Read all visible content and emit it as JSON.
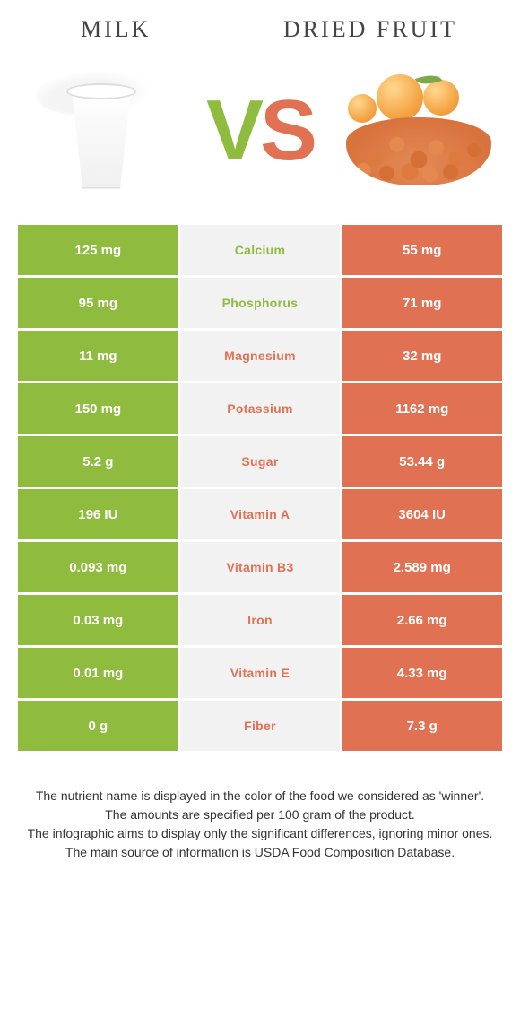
{
  "titles": {
    "left": "Milk",
    "right": "Dried fruit"
  },
  "colors": {
    "left": "#8fbb3f",
    "right": "#e17153",
    "mid_bg": "#f2f2f2"
  },
  "vs": {
    "v": "V",
    "s": "S"
  },
  "rows": [
    {
      "left": "125 mg",
      "label": "Calcium",
      "right": "55 mg",
      "winner": "left"
    },
    {
      "left": "95 mg",
      "label": "Phosphorus",
      "right": "71 mg",
      "winner": "left"
    },
    {
      "left": "11 mg",
      "label": "Magnesium",
      "right": "32 mg",
      "winner": "right"
    },
    {
      "left": "150 mg",
      "label": "Potassium",
      "right": "1162 mg",
      "winner": "right"
    },
    {
      "left": "5.2 g",
      "label": "Sugar",
      "right": "53.44 g",
      "winner": "right"
    },
    {
      "left": "196 IU",
      "label": "Vitamin A",
      "right": "3604 IU",
      "winner": "right"
    },
    {
      "left": "0.093 mg",
      "label": "Vitamin B3",
      "right": "2.589 mg",
      "winner": "right"
    },
    {
      "left": "0.03 mg",
      "label": "Iron",
      "right": "2.66 mg",
      "winner": "right"
    },
    {
      "left": "0.01 mg",
      "label": "Vitamin E",
      "right": "4.33 mg",
      "winner": "right"
    },
    {
      "left": "0 g",
      "label": "Fiber",
      "right": "7.3 g",
      "winner": "right"
    }
  ],
  "footer_lines": [
    "The nutrient name is displayed in the color of the food we considered as 'winner'.",
    "The amounts are specified per 100 gram of the product.",
    "The infographic aims to display only the significant differences, ignoring minor ones.",
    "The main source of information is USDA Food Composition Database."
  ]
}
